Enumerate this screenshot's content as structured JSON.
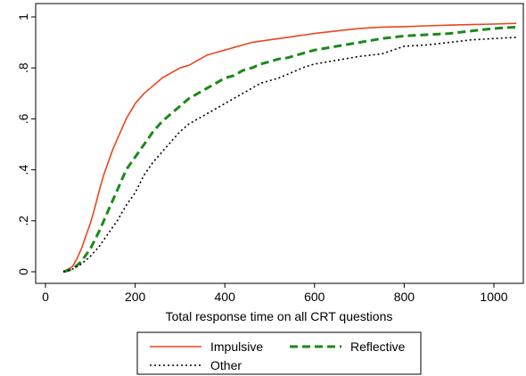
{
  "chart_data": {
    "type": "line",
    "title": "",
    "xlabel": "Total response time on all CRT questions",
    "ylabel": "",
    "xlim": [
      0,
      1050
    ],
    "ylim": [
      0,
      1
    ],
    "xticks": [
      0,
      200,
      400,
      600,
      800,
      1000
    ],
    "yticks": [
      0,
      0.2,
      0.4,
      0.6,
      0.8,
      1
    ],
    "yticklabels": [
      "0",
      ".2",
      ".4",
      ".6",
      ".8",
      "1"
    ],
    "grid": false,
    "legend_position": "bottom",
    "series": [
      {
        "name": "Impulsive",
        "color": "#e8471c",
        "style": "solid",
        "x": [
          40,
          50,
          60,
          70,
          80,
          90,
          100,
          110,
          120,
          130,
          140,
          150,
          160,
          170,
          180,
          190,
          200,
          220,
          240,
          260,
          280,
          300,
          320,
          340,
          360,
          380,
          400,
          420,
          440,
          460,
          480,
          500,
          520,
          540,
          560,
          580,
          600,
          650,
          700,
          750,
          800,
          850,
          900,
          950,
          1000,
          1050
        ],
        "y": [
          0,
          0.01,
          0.02,
          0.05,
          0.09,
          0.14,
          0.19,
          0.25,
          0.32,
          0.38,
          0.43,
          0.48,
          0.52,
          0.56,
          0.6,
          0.63,
          0.66,
          0.7,
          0.73,
          0.76,
          0.78,
          0.8,
          0.81,
          0.83,
          0.85,
          0.86,
          0.87,
          0.88,
          0.89,
          0.9,
          0.905,
          0.91,
          0.915,
          0.92,
          0.925,
          0.93,
          0.935,
          0.945,
          0.955,
          0.96,
          0.962,
          0.965,
          0.968,
          0.97,
          0.972,
          0.975
        ]
      },
      {
        "name": "Reflective",
        "color": "#1a8a1a",
        "style": "dashed",
        "x": [
          40,
          60,
          80,
          100,
          120,
          140,
          160,
          180,
          200,
          220,
          240,
          260,
          280,
          300,
          320,
          340,
          360,
          380,
          400,
          420,
          440,
          460,
          480,
          500,
          520,
          540,
          560,
          580,
          600,
          650,
          700,
          750,
          800,
          850,
          900,
          950,
          1000,
          1050
        ],
        "y": [
          0,
          0.01,
          0.04,
          0.09,
          0.16,
          0.24,
          0.32,
          0.4,
          0.45,
          0.5,
          0.55,
          0.59,
          0.62,
          0.65,
          0.68,
          0.7,
          0.72,
          0.74,
          0.76,
          0.77,
          0.79,
          0.8,
          0.815,
          0.825,
          0.835,
          0.84,
          0.85,
          0.86,
          0.87,
          0.885,
          0.9,
          0.915,
          0.925,
          0.93,
          0.935,
          0.945,
          0.955,
          0.96
        ]
      },
      {
        "name": "Other",
        "color": "#000000",
        "style": "dotted",
        "x": [
          40,
          60,
          80,
          100,
          120,
          140,
          160,
          180,
          200,
          220,
          240,
          260,
          280,
          300,
          320,
          340,
          360,
          380,
          400,
          420,
          440,
          460,
          480,
          500,
          520,
          540,
          560,
          580,
          600,
          650,
          700,
          750,
          800,
          850,
          900,
          950,
          1000,
          1050
        ],
        "y": [
          0,
          0.01,
          0.03,
          0.06,
          0.1,
          0.15,
          0.2,
          0.26,
          0.31,
          0.38,
          0.43,
          0.47,
          0.51,
          0.55,
          0.58,
          0.6,
          0.62,
          0.64,
          0.66,
          0.68,
          0.7,
          0.72,
          0.74,
          0.75,
          0.76,
          0.775,
          0.79,
          0.805,
          0.815,
          0.83,
          0.845,
          0.855,
          0.885,
          0.89,
          0.9,
          0.91,
          0.915,
          0.92
        ]
      }
    ]
  }
}
